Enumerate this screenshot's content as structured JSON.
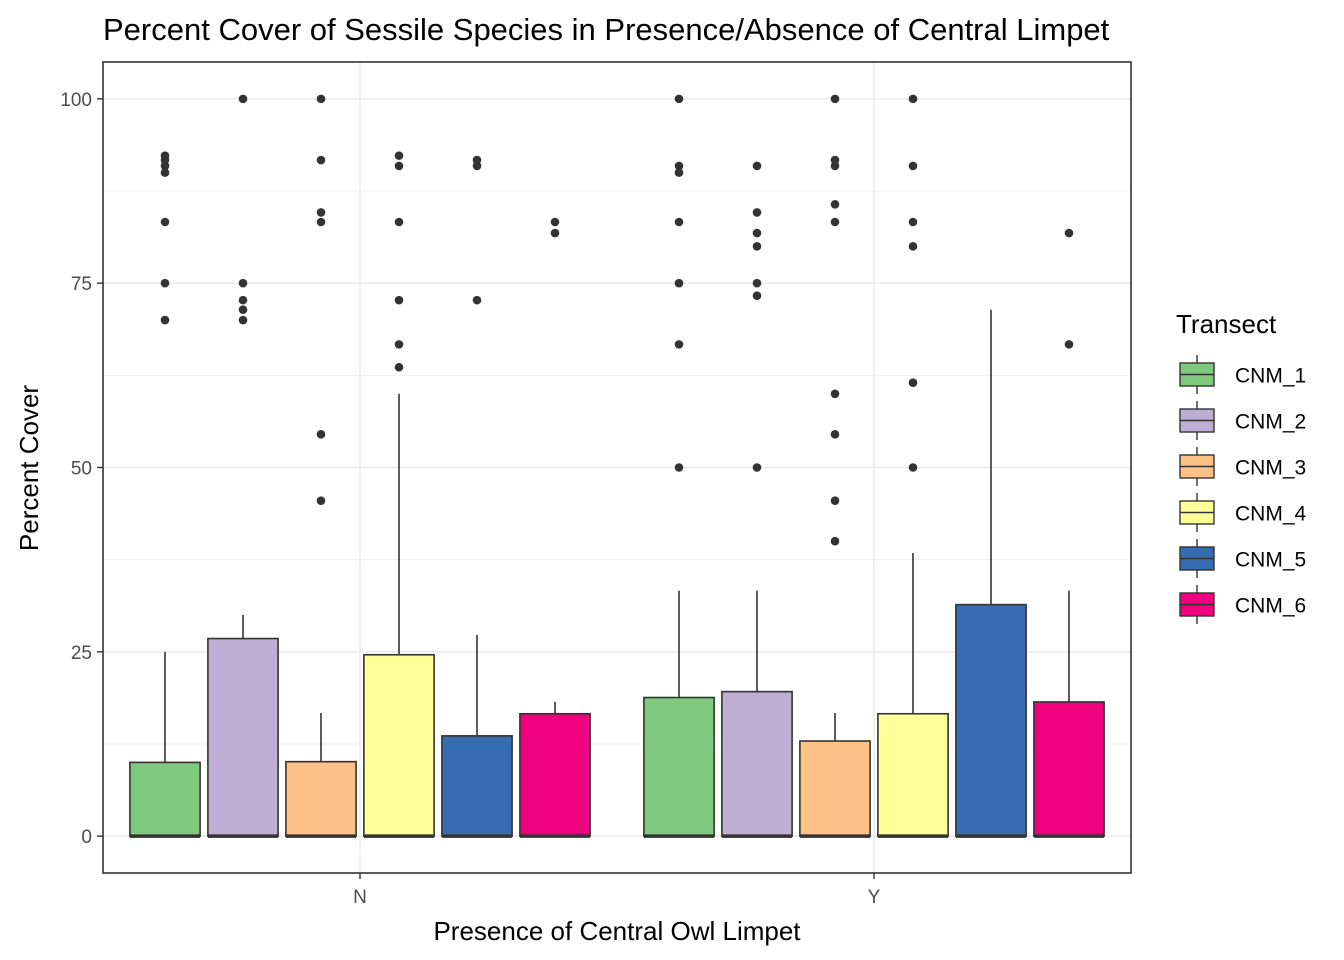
{
  "chart_data": {
    "type": "boxplot",
    "title": "Percent Cover of Sessile Species in Presence/Absence of Central Limpet",
    "xlabel": "Presence of Central Owl Limpet",
    "ylabel": "Percent Cover",
    "categories": [
      "N",
      "Y"
    ],
    "ylim": [
      -5,
      105
    ],
    "yticks": [
      0,
      25,
      50,
      75,
      100
    ],
    "grid": true,
    "legend": {
      "title": "Transect",
      "position": "right"
    },
    "series": [
      {
        "name": "CNM_1",
        "color": "#7fc97f",
        "boxes": [
          {
            "q1": 0,
            "median": 0,
            "q3": 10,
            "whisker_low": 0,
            "whisker_high": 25,
            "outliers": [
              70,
              75,
              83.3,
              90,
              90.9,
              91.7,
              92.3
            ]
          },
          {
            "q1": 0,
            "median": 0,
            "q3": 18.8,
            "whisker_low": 0,
            "whisker_high": 33.3,
            "outliers": [
              50,
              66.7,
              75,
              83.3,
              90,
              90.9,
              100
            ]
          }
        ]
      },
      {
        "name": "CNM_2",
        "color": "#beaed4",
        "boxes": [
          {
            "q1": 0,
            "median": 0,
            "q3": 26.8,
            "whisker_low": 0,
            "whisker_high": 30,
            "outliers": [
              70,
              71.4,
              72.7,
              75,
              100
            ]
          },
          {
            "q1": 0,
            "median": 0,
            "q3": 19.6,
            "whisker_low": 0,
            "whisker_high": 33.3,
            "outliers": [
              50,
              73.3,
              75,
              80,
              81.8,
              84.6,
              90.9
            ]
          }
        ]
      },
      {
        "name": "CNM_3",
        "color": "#fdc086",
        "boxes": [
          {
            "q1": 0,
            "median": 0,
            "q3": 10.1,
            "whisker_low": 0,
            "whisker_high": 16.7,
            "outliers": [
              45.5,
              54.5,
              83.3,
              84.6,
              91.7,
              100
            ]
          },
          {
            "q1": 0,
            "median": 0,
            "q3": 12.9,
            "whisker_low": 0,
            "whisker_high": 16.7,
            "outliers": [
              40,
              45.5,
              54.5,
              60,
              83.3,
              85.7,
              90.9,
              91.7,
              100
            ]
          }
        ]
      },
      {
        "name": "CNM_4",
        "color": "#ffff99",
        "boxes": [
          {
            "q1": 0,
            "median": 0,
            "q3": 24.6,
            "whisker_low": 0,
            "whisker_high": 60,
            "outliers": [
              63.6,
              66.7,
              72.7,
              83.3,
              90.9,
              92.3
            ]
          },
          {
            "q1": 0,
            "median": 0,
            "q3": 16.6,
            "whisker_low": 0,
            "whisker_high": 38.4,
            "outliers": [
              50,
              61.5,
              80,
              83.3,
              90.9,
              100
            ]
          }
        ]
      },
      {
        "name": "CNM_5",
        "color": "#386cb0",
        "boxes": [
          {
            "q1": 0,
            "median": 0,
            "q3": 13.6,
            "whisker_low": 0,
            "whisker_high": 27.3,
            "outliers": [
              72.7,
              90.9,
              91.7
            ]
          },
          {
            "q1": 0,
            "median": 0,
            "q3": 31.4,
            "whisker_low": 0,
            "whisker_high": 71.4,
            "outliers": []
          }
        ]
      },
      {
        "name": "CNM_6",
        "color": "#f0027f",
        "boxes": [
          {
            "q1": 0,
            "median": 0,
            "q3": 16.6,
            "whisker_low": 0,
            "whisker_high": 18.2,
            "outliers": [
              81.8,
              83.3
            ]
          },
          {
            "q1": 0,
            "median": 0,
            "q3": 18.2,
            "whisker_low": 0,
            "whisker_high": 33.3,
            "outliers": [
              66.7,
              81.8
            ]
          }
        ]
      }
    ]
  }
}
